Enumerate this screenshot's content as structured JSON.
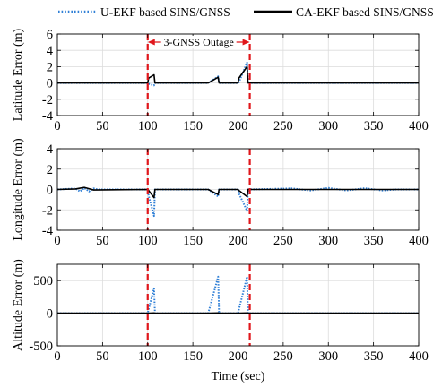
{
  "legend": {
    "items": [
      {
        "label": "U-EKF based SINS/GNSS",
        "color": "#2f7fd6",
        "dash": "dotted"
      },
      {
        "label": "CA-EKF based SINS/GNSS",
        "color": "#000000",
        "dash": "solid"
      }
    ]
  },
  "annotation": {
    "text": "3-GNSS Outage",
    "color": "#e0161b",
    "x_start": 100,
    "x_end": 213
  },
  "chart_data": [
    {
      "type": "line",
      "title": "",
      "xlabel": "",
      "ylabel": "Latitude Error (m)",
      "xlim": [
        0,
        400
      ],
      "ylim": [
        -4,
        6
      ],
      "xticks": [
        0,
        50,
        100,
        150,
        200,
        250,
        300,
        350,
        400
      ],
      "yticks": [
        -4,
        -2,
        0,
        2,
        4,
        6
      ],
      "grid": true,
      "outage_lines_x": [
        100,
        213
      ],
      "series": [
        {
          "name": "U-EKF based SINS/GNSS",
          "color": "#2f7fd6",
          "x": [
            0,
            100,
            101,
            107,
            108,
            109,
            167,
            178,
            179,
            200,
            201,
            210,
            211,
            400
          ],
          "y": [
            0,
            0,
            -0.1,
            -0.3,
            0,
            0,
            0,
            0.8,
            0,
            0,
            0.1,
            2.5,
            0,
            0
          ]
        },
        {
          "name": "CA-EKF based SINS/GNSS",
          "color": "#000000",
          "x": [
            0,
            100,
            101,
            107,
            108,
            109,
            167,
            178,
            179,
            200,
            201,
            210,
            211,
            400
          ],
          "y": [
            0,
            0,
            0.6,
            1.0,
            0,
            0,
            0,
            0.7,
            0,
            0,
            0.6,
            2.0,
            0,
            0
          ]
        }
      ]
    },
    {
      "type": "line",
      "title": "",
      "xlabel": "",
      "ylabel": "Longitude Error (m)",
      "xlim": [
        0,
        400
      ],
      "ylim": [
        -4,
        4
      ],
      "xticks": [
        0,
        50,
        100,
        150,
        200,
        250,
        300,
        350,
        400
      ],
      "yticks": [
        -4,
        -2,
        0,
        2,
        4
      ],
      "grid": true,
      "outage_lines_x": [
        100,
        213
      ],
      "series": [
        {
          "name": "U-EKF based SINS/GNSS",
          "color": "#2f7fd6",
          "x": [
            0,
            20,
            25,
            30,
            35,
            40,
            45,
            100,
            101,
            107,
            108,
            109,
            167,
            178,
            179,
            200,
            201,
            210,
            211,
            260,
            280,
            300,
            320,
            340,
            360,
            375,
            400
          ],
          "y": [
            0,
            0.1,
            -0.2,
            0.15,
            -0.2,
            0.1,
            0,
            0,
            -0.6,
            -2.6,
            0,
            0,
            0,
            -0.7,
            0,
            0,
            -0.4,
            -2.1,
            0,
            0.1,
            -0.1,
            0.15,
            -0.1,
            0.12,
            -0.1,
            0,
            0
          ]
        },
        {
          "name": "CA-EKF based SINS/GNSS",
          "color": "#000000",
          "x": [
            0,
            20,
            30,
            40,
            100,
            101,
            107,
            108,
            109,
            167,
            178,
            179,
            200,
            201,
            210,
            211,
            400
          ],
          "y": [
            0,
            0.05,
            0.2,
            -0.05,
            0,
            -0.1,
            -0.8,
            0,
            0,
            0,
            -0.5,
            0,
            0,
            -0.1,
            -0.7,
            0,
            0
          ]
        }
      ]
    },
    {
      "type": "line",
      "title": "",
      "xlabel": "Time (sec)",
      "ylabel": "Altitude Error (m)",
      "xlim": [
        0,
        400
      ],
      "ylim": [
        -500,
        750
      ],
      "xticks": [
        0,
        50,
        100,
        150,
        200,
        250,
        300,
        350,
        400
      ],
      "yticks": [
        -500,
        0,
        500
      ],
      "grid": true,
      "outage_lines_x": [
        100,
        213
      ],
      "series": [
        {
          "name": "U-EKF based SINS/GNSS",
          "color": "#2f7fd6",
          "x": [
            0,
            100,
            101,
            107,
            108,
            109,
            167,
            178,
            179,
            200,
            201,
            210,
            211,
            400
          ],
          "y": [
            0,
            0,
            60,
            380,
            0,
            0,
            0,
            560,
            0,
            0,
            60,
            560,
            0,
            0
          ]
        },
        {
          "name": "CA-EKF based SINS/GNSS",
          "color": "#000000",
          "x": [
            0,
            100,
            101,
            107,
            108,
            109,
            167,
            178,
            179,
            200,
            201,
            210,
            211,
            400
          ],
          "y": [
            0,
            0,
            0,
            5,
            0,
            0,
            0,
            5,
            0,
            0,
            0,
            5,
            0,
            0
          ]
        }
      ]
    }
  ]
}
